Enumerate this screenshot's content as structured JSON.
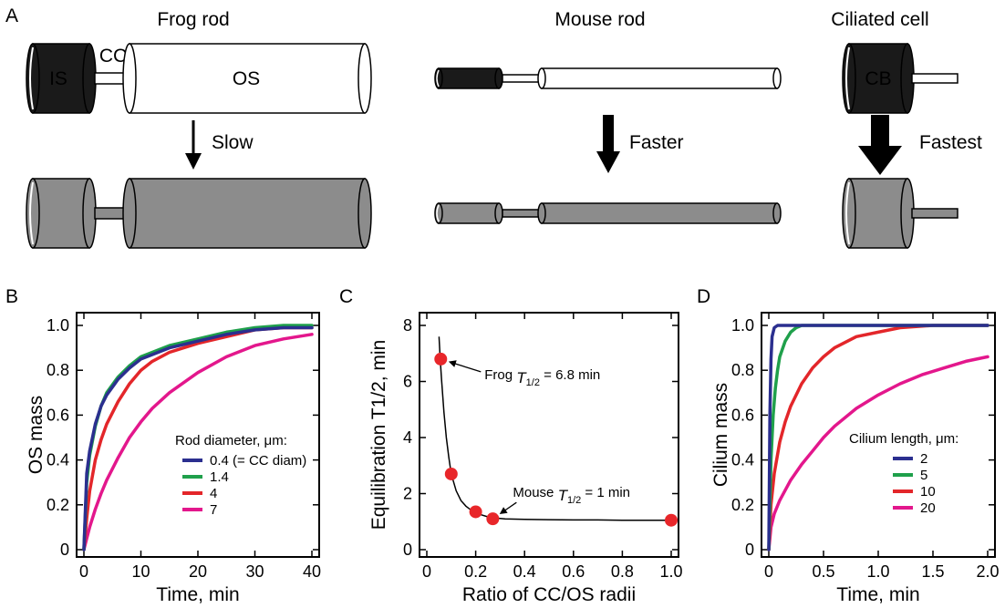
{
  "panel_a": {
    "panel_label": "A",
    "titles": {
      "frog": "Frog rod",
      "mouse": "Mouse rod",
      "ciliated": "Ciliated cell"
    },
    "labels": {
      "is": "IS",
      "cc": "CC",
      "os": "OS",
      "cb": "CB"
    },
    "arrows": {
      "frog": "Slow",
      "mouse": "Faster",
      "ciliated": "Fastest"
    },
    "colors": {
      "dark": "#1a1a1a",
      "gray": "#8c8c8c",
      "outline": "#000000"
    }
  },
  "panel_b": {
    "panel_label": "B"
  },
  "panel_c": {
    "panel_label": "C"
  },
  "panel_d": {
    "panel_label": "D"
  },
  "chart_data": [
    {
      "panel": "B",
      "type": "line",
      "xlabel": "Time, min",
      "ylabel": "OS mass",
      "xlim": [
        0,
        40
      ],
      "ylim": [
        0,
        1.0
      ],
      "xticks": [
        0,
        10,
        20,
        30,
        40
      ],
      "yticks": [
        0,
        0.2,
        0.4,
        0.6,
        0.8,
        1.0
      ],
      "xtick_labels": [
        "0",
        "10",
        "20",
        "30",
        "40"
      ],
      "ytick_labels": [
        "0",
        "0.2",
        "0.4",
        "0.6",
        "0.8",
        "1.0"
      ],
      "legend_title": "Rod diameter, μm:",
      "legend_position": "lower-right",
      "series": [
        {
          "name": "0.4 (= CC diam)",
          "color": "#2b2f8f",
          "x": [
            0,
            0.5,
            1,
            2,
            3,
            4,
            6,
            8,
            10,
            12,
            15,
            20,
            25,
            30,
            35,
            40
          ],
          "y": [
            0,
            0.34,
            0.44,
            0.56,
            0.64,
            0.69,
            0.76,
            0.81,
            0.85,
            0.87,
            0.9,
            0.93,
            0.96,
            0.98,
            0.99,
            0.99
          ]
        },
        {
          "name": "1.4",
          "color": "#1fa04b",
          "x": [
            0,
            0.5,
            1,
            2,
            3,
            4,
            6,
            8,
            10,
            12,
            15,
            20,
            25,
            30,
            35,
            40
          ],
          "y": [
            0,
            0.3,
            0.42,
            0.55,
            0.64,
            0.7,
            0.77,
            0.82,
            0.86,
            0.88,
            0.91,
            0.94,
            0.97,
            0.99,
            1.0,
            1.0
          ]
        },
        {
          "name": "4",
          "color": "#e3262a",
          "x": [
            0,
            0.5,
            1,
            2,
            3,
            4,
            6,
            8,
            10,
            12,
            15,
            20,
            25,
            30,
            35,
            40
          ],
          "y": [
            0,
            0.14,
            0.26,
            0.4,
            0.49,
            0.56,
            0.66,
            0.74,
            0.8,
            0.84,
            0.88,
            0.92,
            0.95,
            0.98,
            0.99,
            0.99
          ]
        },
        {
          "name": "7",
          "color": "#e3178c",
          "x": [
            0,
            0.5,
            1,
            2,
            3,
            4,
            6,
            8,
            10,
            12,
            15,
            20,
            25,
            30,
            35,
            40
          ],
          "y": [
            0,
            0.05,
            0.1,
            0.18,
            0.25,
            0.31,
            0.41,
            0.5,
            0.57,
            0.63,
            0.7,
            0.79,
            0.86,
            0.91,
            0.94,
            0.96
          ]
        }
      ]
    },
    {
      "panel": "C",
      "type": "scatter",
      "xlabel": "Ratio of CC/OS radii",
      "ylabel": "Equilibration T1/2, min",
      "xlim": [
        0,
        1.0
      ],
      "ylim": [
        0,
        8
      ],
      "xticks": [
        0,
        0.2,
        0.4,
        0.6,
        0.8,
        1.0
      ],
      "yticks": [
        0,
        2,
        4,
        6,
        8
      ],
      "xtick_labels": [
        "0",
        "0.2",
        "0.4",
        "0.6",
        "0.8",
        "1.0"
      ],
      "ytick_labels": [
        "0",
        "2",
        "4",
        "6",
        "8"
      ],
      "points": {
        "x": [
          0.057,
          0.1,
          0.2,
          0.27,
          1.0
        ],
        "y": [
          6.8,
          2.7,
          1.35,
          1.1,
          1.05
        ],
        "color": "#e8262a"
      },
      "fit_curve": {
        "x": [
          0.05,
          0.055,
          0.06,
          0.07,
          0.08,
          0.09,
          0.1,
          0.12,
          0.14,
          0.16,
          0.18,
          0.2,
          0.22,
          0.25,
          0.28,
          0.32,
          0.4,
          0.5,
          0.6,
          0.7,
          0.8,
          0.9,
          1.0
        ],
        "y": [
          7.6,
          6.8,
          6.1,
          4.9,
          4.0,
          3.3,
          2.7,
          2.1,
          1.75,
          1.55,
          1.42,
          1.33,
          1.25,
          1.17,
          1.13,
          1.1,
          1.08,
          1.07,
          1.06,
          1.06,
          1.05,
          1.05,
          1.05
        ]
      },
      "annotations": [
        {
          "prefix": "Frog ",
          "sym": "T",
          "sub": "1/2",
          "rest": " = 6.8 min",
          "x": 0.057,
          "y": 6.8
        },
        {
          "prefix": "Mouse ",
          "sym": "T",
          "sub": "1/2",
          "rest": " = 1 min",
          "x": 0.27,
          "y": 1.1
        }
      ]
    },
    {
      "panel": "D",
      "type": "line",
      "xlabel": "Time, min",
      "ylabel": "Cilium mass",
      "xlim": [
        0,
        2.0
      ],
      "ylim": [
        0,
        1.0
      ],
      "xticks": [
        0,
        0.5,
        1.0,
        1.5,
        2.0
      ],
      "yticks": [
        0,
        0.2,
        0.4,
        0.6,
        0.8,
        1.0
      ],
      "xtick_labels": [
        "0",
        "0.5",
        "1.0",
        "1.5",
        "2.0"
      ],
      "ytick_labels": [
        "0",
        "0.2",
        "0.4",
        "0.6",
        "0.8",
        "1.0"
      ],
      "legend_title": "Cilium length, μm:",
      "legend_position": "lower-right",
      "series": [
        {
          "name": "2",
          "color": "#2b2f8f",
          "x": [
            0,
            0.01,
            0.02,
            0.03,
            0.05,
            0.08,
            0.1,
            0.2,
            0.5,
            1.0,
            1.5,
            2.0
          ],
          "y": [
            0,
            0.6,
            0.85,
            0.95,
            0.99,
            1.0,
            1.0,
            1.0,
            1.0,
            1.0,
            1.0,
            1.0
          ]
        },
        {
          "name": "5",
          "color": "#1fa04b",
          "x": [
            0,
            0.02,
            0.04,
            0.06,
            0.08,
            0.1,
            0.15,
            0.2,
            0.25,
            0.3,
            0.4,
            0.6,
            1.0,
            1.5,
            2.0
          ],
          "y": [
            0,
            0.4,
            0.6,
            0.72,
            0.8,
            0.86,
            0.93,
            0.97,
            0.99,
            1.0,
            1.0,
            1.0,
            1.0,
            1.0,
            1.0
          ]
        },
        {
          "name": "10",
          "color": "#e3262a",
          "x": [
            0,
            0.02,
            0.05,
            0.1,
            0.15,
            0.2,
            0.3,
            0.4,
            0.5,
            0.6,
            0.8,
            1.0,
            1.2,
            1.5,
            2.0
          ],
          "y": [
            0,
            0.2,
            0.34,
            0.48,
            0.57,
            0.64,
            0.74,
            0.81,
            0.86,
            0.9,
            0.95,
            0.97,
            0.99,
            1.0,
            1.0
          ]
        },
        {
          "name": "20",
          "color": "#e3178c",
          "x": [
            0,
            0.02,
            0.05,
            0.1,
            0.2,
            0.3,
            0.4,
            0.5,
            0.6,
            0.8,
            1.0,
            1.2,
            1.4,
            1.6,
            1.8,
            2.0
          ],
          "y": [
            0,
            0.1,
            0.16,
            0.22,
            0.31,
            0.38,
            0.44,
            0.5,
            0.55,
            0.63,
            0.69,
            0.74,
            0.78,
            0.81,
            0.84,
            0.86
          ]
        }
      ]
    }
  ]
}
